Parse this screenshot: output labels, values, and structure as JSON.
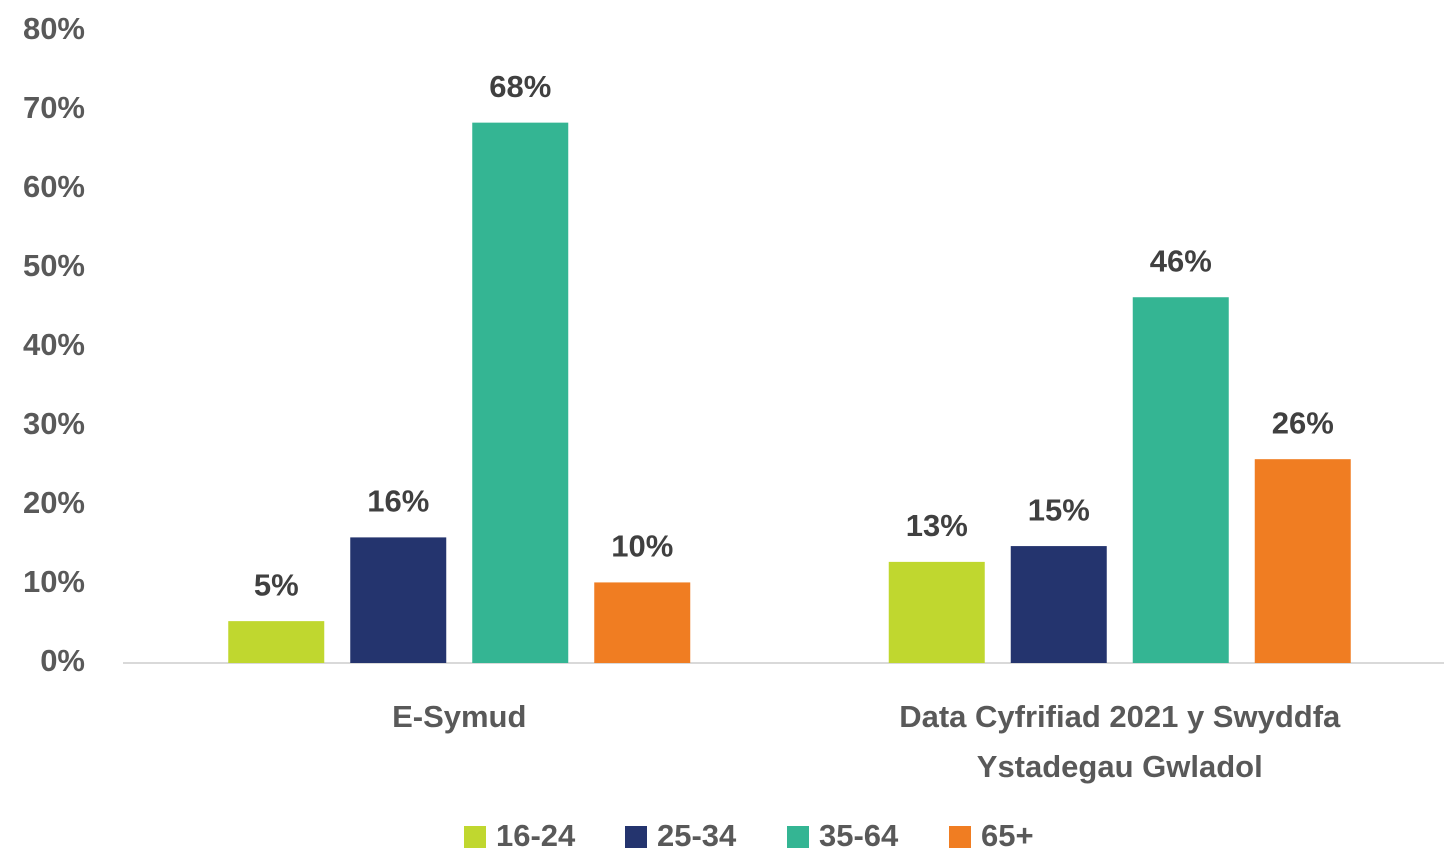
{
  "chart_data": {
    "type": "bar",
    "categories": [
      "E-Symud",
      "Data Cyfrifiad 2021 y Swyddfa Ystadegau Gwladol"
    ],
    "series": [
      {
        "name": "16-24",
        "color": "#c0d72f",
        "values": [
          5.3,
          12.8
        ],
        "value_labels": [
          "5%",
          "13%"
        ]
      },
      {
        "name": "25-34",
        "color": "#24346e",
        "values": [
          15.9,
          14.8
        ],
        "value_labels": [
          "16%",
          "15%"
        ]
      },
      {
        "name": "35-64",
        "color": "#34b593",
        "values": [
          68.4,
          46.3
        ],
        "value_labels": [
          "68%",
          "46%"
        ]
      },
      {
        "name": "65+",
        "color": "#f07d22",
        "values": [
          10.2,
          25.8
        ],
        "value_labels": [
          "10%",
          "26%"
        ]
      }
    ],
    "ylim": [
      0,
      80
    ],
    "yticks": [
      {
        "value": 0,
        "label": "0%"
      },
      {
        "value": 10,
        "label": "10%"
      },
      {
        "value": 20,
        "label": "20%"
      },
      {
        "value": 30,
        "label": "30%"
      },
      {
        "value": 40,
        "label": "40%"
      },
      {
        "value": 50,
        "label": "50%"
      },
      {
        "value": 60,
        "label": "60%"
      },
      {
        "value": 70,
        "label": "70%"
      },
      {
        "value": 80,
        "label": "80%"
      }
    ],
    "grid": false,
    "legend": "bottom"
  }
}
